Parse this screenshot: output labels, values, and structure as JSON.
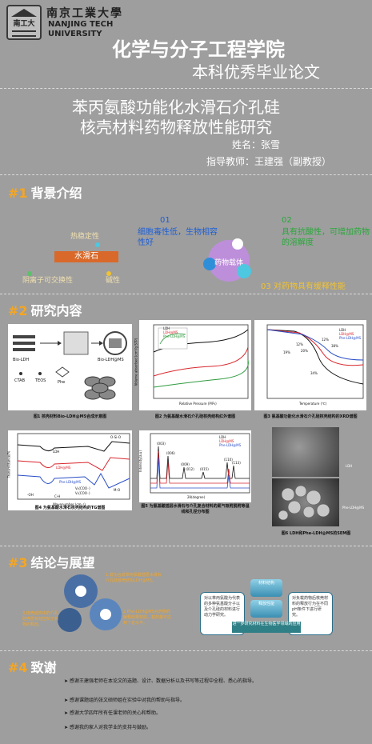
{
  "header": {
    "university_cn": "南京工業大學",
    "university_en_1": "NANJING TECH",
    "university_en_2": "UNIVERSITY",
    "school": "化学与分子工程学院",
    "thesis_type": "本科优秀毕业论文"
  },
  "title": {
    "line1": "苯丙氨酸功能化水滑石介孔硅",
    "line2": "核壳材料药物释放性能研究"
  },
  "author_line": "姓名：张雪",
  "advisor_line": "指导教师：王建强（副教授）",
  "sections": {
    "s1": {
      "num": "#1",
      "title": "背景介绍"
    },
    "s2": {
      "num": "#2",
      "title": "研究内容"
    },
    "s3": {
      "num": "#3",
      "title": "结论与展望"
    },
    "s4": {
      "num": "#4",
      "title": "致谢"
    }
  },
  "background": {
    "talc_label": "水滑石",
    "prop_top": "热稳定性",
    "prop_left": "阴离子可交换性",
    "prop_right": "碱性",
    "drug_label": "药物载体",
    "points": [
      {
        "num": "01",
        "text": "细胞毒性低，生物相容性好",
        "color": "#1e5fd6"
      },
      {
        "num": "02",
        "text": "具有抗酸性，可增加药物的溶解度",
        "color": "#29a83a"
      },
      {
        "num": "03",
        "text": "对药物具有缓释性能",
        "color": "#f1c232"
      }
    ]
  },
  "figures": [
    {
      "caption": "图1 核壳材料Bio-LDH@MS合成示意图"
    },
    {
      "caption": "图2 为氨基酸水滑石介孔硅核壳结构红外谱图"
    },
    {
      "caption": "图3 氨基酸功能化水滑石介孔硅核壳结构的XRD谱图"
    },
    {
      "caption": "图4 为氨基酸水滑石核壳结构的TG谱图"
    },
    {
      "caption": "图5 为氨基酸插层水滑石与介孔复合材料的氮气吸附脱附等温线和孔径分布图"
    },
    {
      "caption": "图6 LDH和Phe-LDH@MS的SEM图"
    }
  ],
  "fig1": {
    "labels": [
      "Bio-LDH",
      "Bio-LDH@MS",
      "CTAB",
      "TEOS",
      "Phe"
    ]
  },
  "fig2": {
    "legend": [
      "LDH",
      "LDH@MS",
      "Phe-LDH@MS"
    ],
    "xlabel": "Relative Pressure (P/P₀)",
    "ylabel": "Volume absorbed (cm³/g STP)",
    "xticks": [
      "0.0",
      "0.2",
      "0.4",
      "0.6",
      "0.8",
      "1.0"
    ]
  },
  "fig3": {
    "legend": [
      "LDH",
      "LDH@MS",
      "Phe-LDH@MS"
    ],
    "xlabel": "Temperature (℃)",
    "annotations": [
      "12%",
      "19%",
      "20%",
      "34%",
      "12%",
      "38%"
    ],
    "xticks": [
      "200",
      "300",
      "400",
      "500",
      "600",
      "700",
      "800"
    ]
  },
  "fig4": {
    "labels": [
      "LDH",
      "LDH@MS",
      "Phe-LDH@MS",
      "-OH",
      "C-H",
      "V₄(COO⁻)",
      "Vₛ(COO⁻)",
      "O-Si-O",
      "M-O"
    ],
    "xlabel": "Wavenumber (cm⁻¹)",
    "ylabel": "Transmittance/%",
    "xticks": [
      "4000",
      "3500",
      "3000",
      "2500",
      "2000",
      "1500",
      "1000",
      "500"
    ]
  },
  "fig5": {
    "legend": [
      "LDH",
      "LDH@MS",
      "Phe-LDH@MS"
    ],
    "peaks": [
      "(003)",
      "(006)",
      "(009)",
      "(012)",
      "(015)",
      "(110)",
      "(113)"
    ],
    "xlabel": "2θ(degree)",
    "ylabel": "Intensity(a.u)",
    "xticks": [
      "10",
      "20",
      "30",
      "40",
      "50",
      "60",
      "70",
      "80"
    ]
  },
  "fig6": {
    "labels": [
      "LDH",
      "Phe-LDH@MS"
    ]
  },
  "conclusion": {
    "gear_texts": [
      "1.成功合成苯丙氨酸插层水滑石介孔硅核壳结构LDH@MS。",
      "3.核壳结构中的介孔硅壳层有效控制了药物的释放。",
      "2.Phe-LDH@MS对药物的缓释效果较好，载药量可达到一定水平。"
    ],
    "box_left": "对以苯丙氨酸为代表的多种氨基酸分子以及介孔硅的材料进行动力学研究。",
    "box_right": "对负载药物后核壳材料的释放行为在不同pH条件下进行研究。",
    "cyl_top": "材料结构",
    "cyl_mid": "释放性能",
    "bar": "进一步研究材料在生物医学领域的应用"
  },
  "acknowledgements": [
    "感谢王建强老师在本论文的选题、设计、数据分析以及书写等过程中全程、悉心的指导。",
    "感谢课题组的张文硕师姐在实验中对我的帮助与指导。",
    "感谢大学四年所有任课老师的关心和帮助。",
    "感谢我的家人对我学业的支持与鼓励。"
  ]
}
